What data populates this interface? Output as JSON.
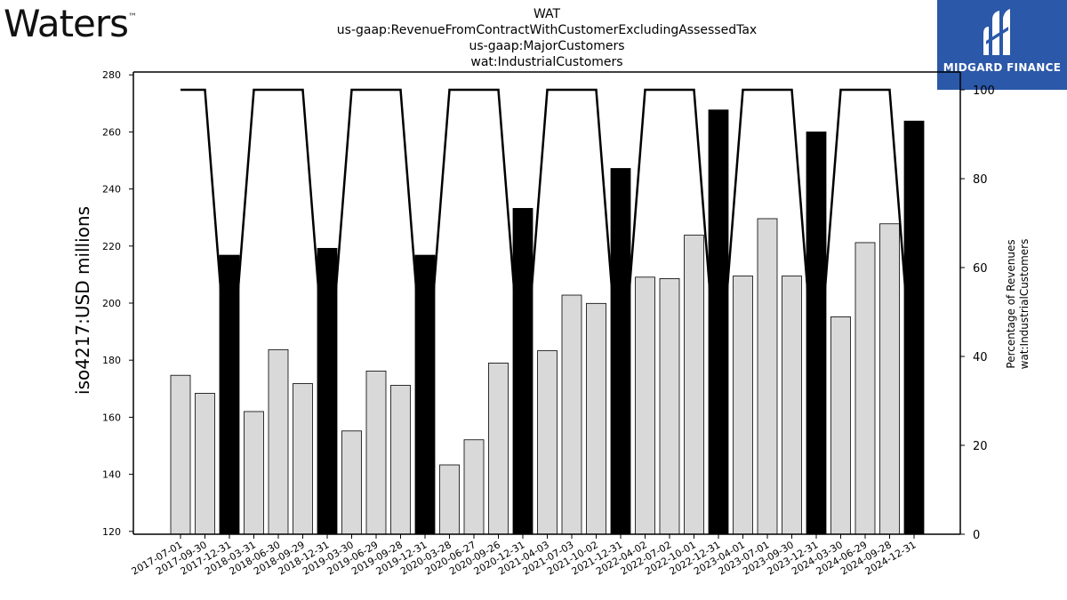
{
  "header": {
    "logo_text": "Waters",
    "logo_tm": "™",
    "title_lines": [
      "WAT",
      "us-gaap:RevenueFromContractWithCustomerExcludingAssessedTax",
      "us-gaap:MajorCustomers",
      "wat:IndustrialCustomers"
    ],
    "brand_name": "MIDGARD FINANCE"
  },
  "colors": {
    "brand_bg": "#2b58a8",
    "bar_quarter": "#d9d9d9",
    "bar_annual": "#000000",
    "line": "#000000"
  },
  "chart_data": {
    "type": "bar",
    "categories": [
      "2017-07-01",
      "2017-09-30",
      "2017-12-31",
      "2018-03-31",
      "2018-06-30",
      "2018-09-29",
      "2018-12-31",
      "2019-03-30",
      "2019-06-29",
      "2019-09-28",
      "2019-12-31",
      "2020-03-28",
      "2020-06-27",
      "2020-09-26",
      "2020-12-31",
      "2021-04-03",
      "2021-07-03",
      "2021-10-02",
      "2021-12-31",
      "2022-04-02",
      "2022-07-02",
      "2022-10-01",
      "2022-12-31",
      "2023-04-01",
      "2023-07-01",
      "2023-09-30",
      "2023-12-31",
      "2024-03-30",
      "2024-06-29",
      "2024-09-28",
      "2024-12-31"
    ],
    "values": [
      174.7,
      168.4,
      216.8,
      162.0,
      183.7,
      171.8,
      219.2,
      155.2,
      176.2,
      171.2,
      216.8,
      143.3,
      152.1,
      179.0,
      233.2,
      183.3,
      202.8,
      199.9,
      247.2,
      209.1,
      208.6,
      223.8,
      267.7,
      209.5,
      229.6,
      209.5,
      260.0,
      195.2,
      221.2,
      227.8,
      263.8
    ],
    "annual": [
      false,
      false,
      true,
      false,
      false,
      false,
      true,
      false,
      false,
      false,
      true,
      false,
      false,
      false,
      true,
      false,
      false,
      false,
      true,
      false,
      false,
      false,
      true,
      false,
      false,
      false,
      true,
      false,
      false,
      false,
      true
    ],
    "ylabel": "iso4217:USD  millions",
    "ylim": [
      119,
      281
    ],
    "yticks": [
      120,
      140,
      160,
      180,
      200,
      220,
      240,
      260,
      280
    ],
    "y2label_lines": [
      "Percentage of Revenues",
      "wat:IndustrialCustomers"
    ],
    "y2lim": [
      0,
      104
    ],
    "y2ticks": [
      0,
      20,
      40,
      60,
      80,
      100
    ],
    "percentages": [
      100,
      100,
      30,
      100,
      100,
      100,
      30,
      100,
      100,
      100,
      30,
      100,
      100,
      100,
      30,
      100,
      100,
      100,
      30,
      100,
      100,
      100,
      30,
      100,
      100,
      100,
      30,
      100,
      100,
      100,
      30
    ]
  }
}
